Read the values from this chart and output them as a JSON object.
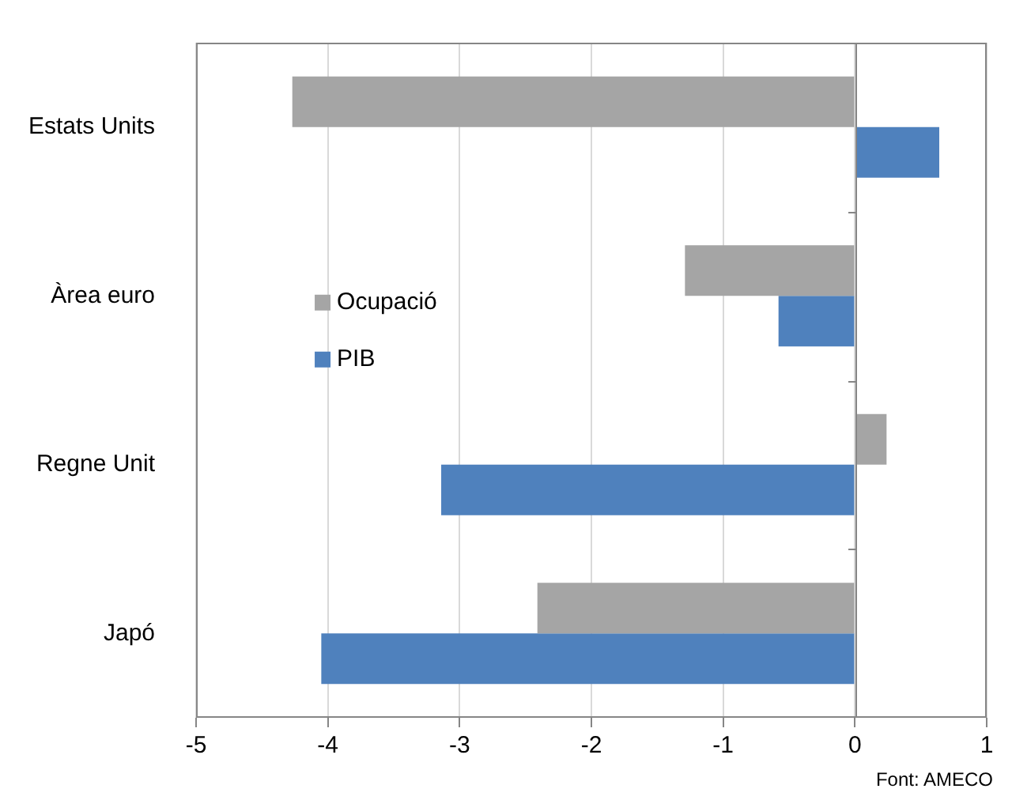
{
  "chart_data": {
    "type": "bar",
    "orientation": "horizontal",
    "categories": [
      "Estats Units",
      "Àrea euro",
      "Regne Unit",
      "Japó"
    ],
    "series": [
      {
        "name": "Ocupació",
        "color": "#a5a5a5",
        "values": [
          -4.27,
          -1.29,
          0.24,
          -2.41
        ]
      },
      {
        "name": "PIB",
        "color": "#4f81bd",
        "values": [
          0.64,
          -0.58,
          -3.14,
          -4.05
        ]
      }
    ],
    "xlim": [
      -5,
      1
    ],
    "xticks": [
      -5,
      -4,
      -3,
      -2,
      -1,
      0,
      1
    ],
    "grid": "x",
    "legend": "left",
    "annotations": [
      "Font: AMECO"
    ]
  }
}
